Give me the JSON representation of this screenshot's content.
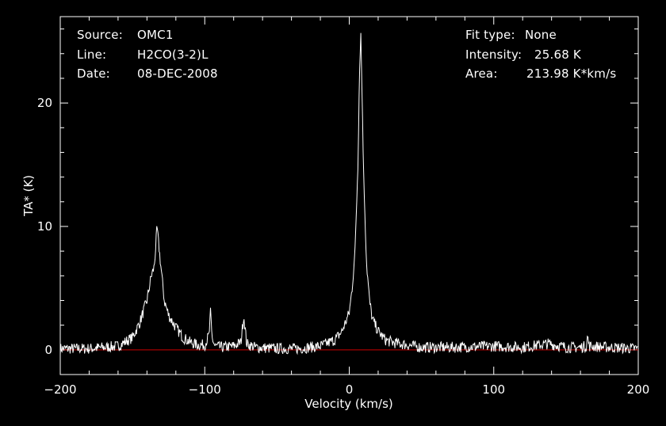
{
  "header": {
    "source_label": "Source:",
    "source_value": "OMC1",
    "line_label": "Line:",
    "line_value": "H2CO(3-2)L",
    "date_label": "Date:",
    "date_value": "08-DEC-2008",
    "fit_label": "Fit type:",
    "fit_value": "None",
    "intensity_label": "Intensity:",
    "intensity_value": "25.68 K",
    "area_label": "Area:",
    "area_value": "213.98 K*km/s"
  },
  "chart_data": {
    "type": "line",
    "xlabel": "Velocity (km/s)",
    "ylabel": "TA* (K)",
    "xlim": [
      -200,
      200
    ],
    "ylim": [
      -2,
      27
    ],
    "xticks": [
      -200,
      -100,
      0,
      100,
      200
    ],
    "yticks": [
      0,
      10,
      20
    ],
    "background": "#000000",
    "axis_color": "#ffffff",
    "baseline": {
      "value": 0,
      "color": "#cc0000"
    },
    "series": [
      {
        "color": "#ffffff",
        "x": [
          -200,
          -180,
          -160,
          -150,
          -145,
          -140,
          -137,
          -135,
          -133,
          -131,
          -128,
          -125,
          -120,
          -115,
          -110,
          -105,
          -100,
          -97,
          -96,
          -95,
          -93,
          -88,
          -80,
          -75,
          -73,
          -71,
          -65,
          -50,
          -35,
          -20,
          -10,
          -5,
          0,
          2,
          4,
          6,
          7,
          8,
          9,
          10,
          12,
          14,
          16,
          20,
          25,
          30,
          35,
          40,
          50,
          70,
          100,
          120,
          138,
          150,
          160,
          164,
          165,
          166,
          180,
          200
        ],
        "y": [
          0.1,
          0.1,
          0.3,
          1.0,
          2.2,
          4.0,
          6.0,
          6.7,
          9.9,
          7.5,
          4.0,
          2.8,
          1.8,
          1.0,
          0.6,
          0.4,
          0.4,
          1.2,
          3.0,
          1.0,
          0.3,
          0.2,
          0.3,
          0.6,
          2.8,
          0.5,
          0.2,
          0.1,
          0.1,
          0.3,
          0.8,
          1.5,
          3.0,
          5.0,
          8.0,
          15.0,
          22.0,
          25.68,
          20.0,
          14.0,
          7.0,
          4.0,
          2.5,
          1.5,
          0.8,
          0.6,
          0.5,
          0.4,
          0.2,
          0.2,
          0.3,
          0.2,
          0.5,
          0.2,
          0.2,
          0.3,
          1.1,
          0.3,
          0.2,
          0.1
        ]
      }
    ]
  }
}
